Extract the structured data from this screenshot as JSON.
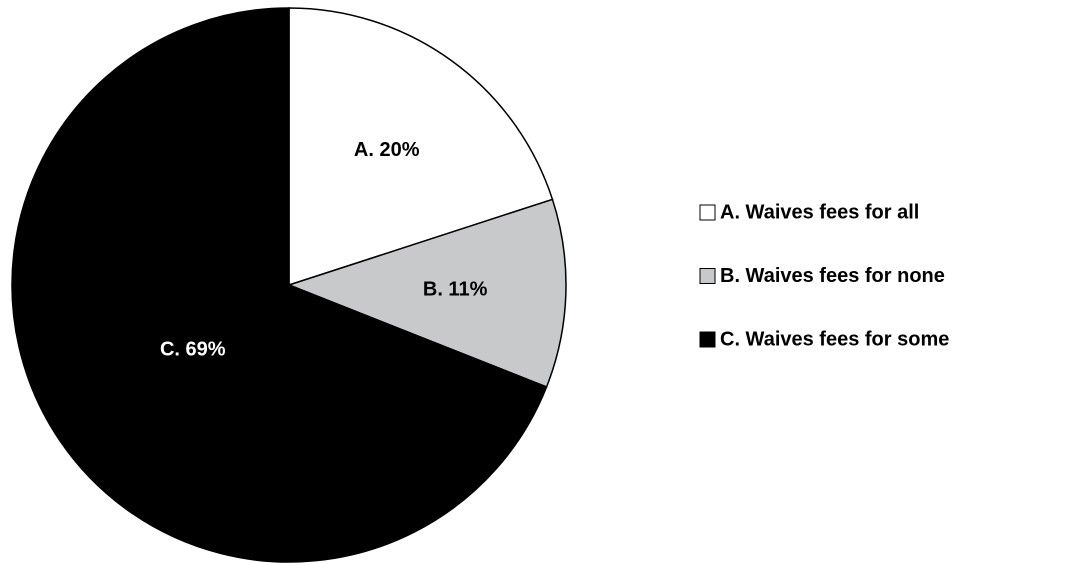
{
  "chart_data": {
    "type": "pie",
    "categories": [
      "A. Waives fees for all",
      "B. Waives fees for none",
      "C. Waives fees for some"
    ],
    "values": [
      20,
      11,
      69
    ],
    "value_labels": [
      "A. 20%",
      "B. 11%",
      "C. 69%"
    ],
    "colors": [
      "#ffffff",
      "#c8c9cb",
      "#000000"
    ],
    "legend": "right"
  }
}
